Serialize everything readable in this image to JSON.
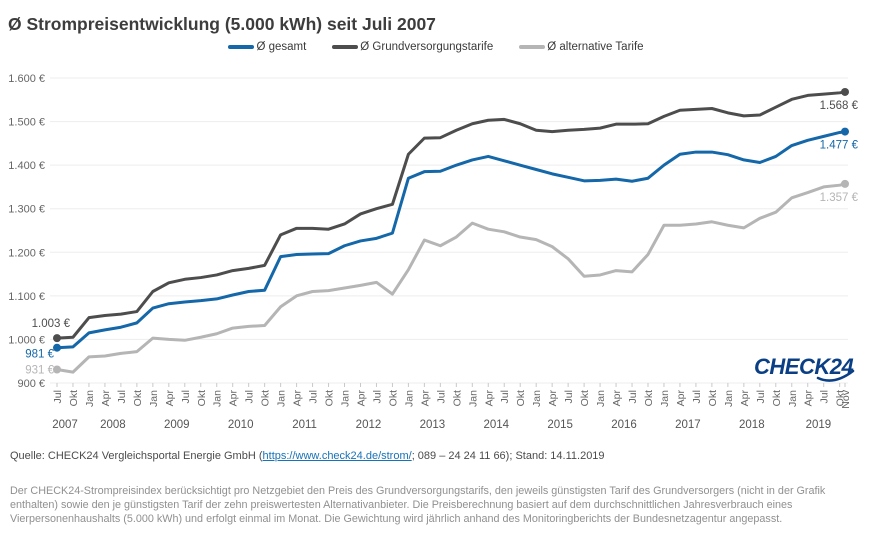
{
  "title": "Ø Strompreisentwicklung (5.000 kWh) seit Juli 2007",
  "logo": {
    "text": "CHECK24",
    "color": "#0a3f85"
  },
  "source": {
    "prefix": "Quelle: CHECK24 Vergleichsportal Energie GmbH (",
    "link": "https://www.check24.de/strom/",
    "suffix": "; 089 – 24 24 11 66); Stand: 14.11.2019"
  },
  "footnote": "Der CHECK24-Strompreisindex berücksichtigt pro Netzgebiet den Preis des Grundversorgungstarifs, den jeweils günstigsten Tarif des Grundversorgers (nicht in der Grafik enthalten) sowie den je günstigsten Tarif der zehn preiswertesten Alternativanbieter. Die Preisberechnung basiert auf dem durchschnittlichen Jahresverbrauch eines Vierpersonenhaushalts (5.000 kWh) und erfolgt einmal im Monat. Die Gewichtung wird jährlich anhand des Monitoringberichts der Bundesnetzagentur angepasst.",
  "chart_data": {
    "type": "line",
    "title": "Ø Strompreisentwicklung (5.000 kWh) seit Juli 2007",
    "xlabel": "",
    "ylabel": "",
    "ylim": [
      900,
      1600
    ],
    "grid": "horizontal",
    "legend_position": "top",
    "y_ticks": [
      900,
      1000,
      1100,
      1200,
      1300,
      1400,
      1500,
      1600
    ],
    "y_tick_labels": [
      "900 €",
      "1.000 €",
      "1.100 €",
      "1.200 €",
      "1.300 €",
      "1.400 €",
      "1.500 €",
      "1.600 €"
    ],
    "x_tick_months": [
      0,
      3,
      6,
      9,
      12,
      15,
      18,
      21,
      24,
      27,
      30,
      33,
      36,
      39,
      42,
      45,
      48,
      51,
      54,
      57,
      60,
      63,
      66,
      69,
      72,
      75,
      78,
      81,
      84,
      87,
      90,
      93,
      96,
      99,
      102,
      105,
      108,
      111,
      114,
      117,
      120,
      123,
      126,
      129,
      132,
      135,
      138,
      141,
      144,
      147,
      148
    ],
    "x_tick_labels": [
      "Jul",
      "Okt",
      "Jan",
      "Apr",
      "Jul",
      "Okt",
      "Jan",
      "Apr",
      "Jul",
      "Okt",
      "Jan",
      "Apr",
      "Jul",
      "Okt",
      "Jan",
      "Apr",
      "Jul",
      "Okt",
      "Jan",
      "Apr",
      "Jul",
      "Okt",
      "Jan",
      "Apr",
      "Jul",
      "Okt",
      "Jan",
      "Apr",
      "Jul",
      "Okt",
      "Jan",
      "Apr",
      "Jul",
      "Okt",
      "Jan",
      "Apr",
      "Jul",
      "Okt",
      "Jan",
      "Apr",
      "Jul",
      "Okt",
      "Jan",
      "Apr",
      "Jul",
      "Okt",
      "Jan",
      "Apr",
      "Jul",
      "Okt",
      "Nov"
    ],
    "years": [
      {
        "label": "2007",
        "center_month": 1.5
      },
      {
        "label": "2008",
        "center_month": 10.5
      },
      {
        "label": "2009",
        "center_month": 22.5
      },
      {
        "label": "2010",
        "center_month": 34.5
      },
      {
        "label": "2011",
        "center_month": 46.5
      },
      {
        "label": "2012",
        "center_month": 58.5
      },
      {
        "label": "2013",
        "center_month": 70.5
      },
      {
        "label": "2014",
        "center_month": 82.5
      },
      {
        "label": "2015",
        "center_month": 94.5
      },
      {
        "label": "2016",
        "center_month": 106.5
      },
      {
        "label": "2017",
        "center_month": 118.5
      },
      {
        "label": "2018",
        "center_month": 130.5
      },
      {
        "label": "2019",
        "center_month": 143
      }
    ],
    "series": [
      {
        "name": "Ø gesamt",
        "color": "#1467a8",
        "start_label": "981 €",
        "end_label": "1.477 €",
        "values": [
          981,
          983,
          1015,
          1022,
          1028,
          1038,
          1072,
          1082,
          1086,
          1089,
          1093,
          1102,
          1110,
          1113,
          1190,
          1195,
          1196,
          1197,
          1215,
          1226,
          1232,
          1244,
          1370,
          1385,
          1386,
          1400,
          1412,
          1420,
          1410,
          1400,
          1390,
          1380,
          1372,
          1364,
          1365,
          1368,
          1363,
          1370,
          1400,
          1425,
          1430,
          1430,
          1424,
          1412,
          1406,
          1420,
          1445,
          1457,
          1466,
          1475,
          1477
        ]
      },
      {
        "name": "Ø Grundversorgungstarife",
        "color": "#4d4d4d",
        "start_label": "1.003 €",
        "end_label": "1.568 €",
        "values": [
          1003,
          1005,
          1050,
          1055,
          1058,
          1064,
          1110,
          1130,
          1138,
          1142,
          1148,
          1158,
          1163,
          1170,
          1240,
          1255,
          1255,
          1253,
          1265,
          1288,
          1300,
          1310,
          1425,
          1462,
          1463,
          1480,
          1495,
          1503,
          1505,
          1495,
          1480,
          1477,
          1480,
          1482,
          1485,
          1494,
          1494,
          1495,
          1512,
          1526,
          1528,
          1530,
          1520,
          1513,
          1515,
          1533,
          1551,
          1560,
          1563,
          1566,
          1568
        ]
      },
      {
        "name": "Ø alternative Tarife",
        "color": "#b5b5b5",
        "start_label": "931 €",
        "end_label": "1.357 €",
        "values": [
          931,
          925,
          960,
          962,
          968,
          972,
          1003,
          1000,
          998,
          1005,
          1013,
          1026,
          1030,
          1032,
          1075,
          1100,
          1110,
          1112,
          1118,
          1124,
          1131,
          1104,
          1160,
          1228,
          1215,
          1235,
          1267,
          1253,
          1247,
          1235,
          1229,
          1213,
          1185,
          1145,
          1148,
          1158,
          1155,
          1195,
          1262,
          1262,
          1265,
          1270,
          1262,
          1256,
          1278,
          1292,
          1325,
          1337,
          1350,
          1354,
          1357
        ]
      }
    ]
  }
}
